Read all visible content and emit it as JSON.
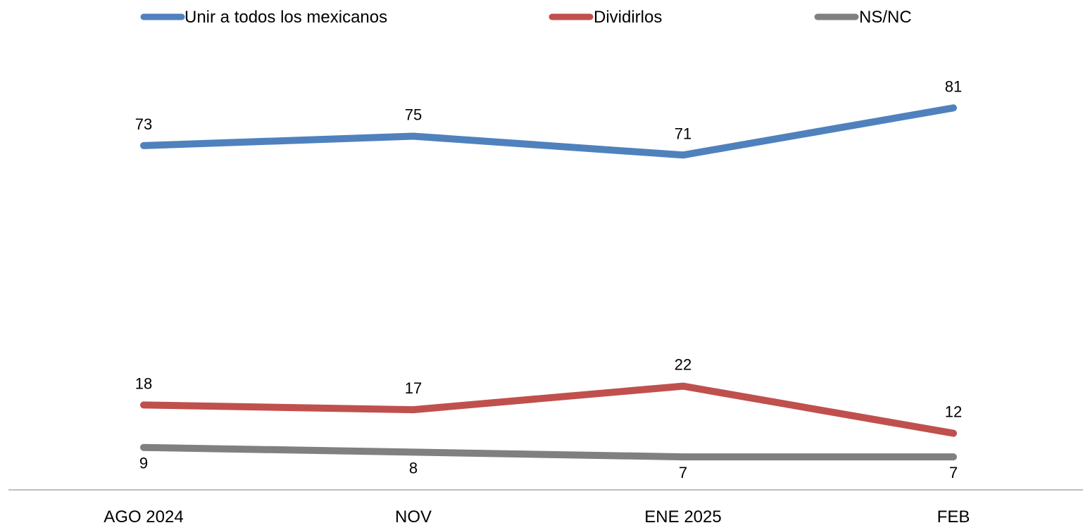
{
  "chart_data": {
    "type": "line",
    "categories": [
      "AGO 2024",
      "NOV",
      "ENE 2025",
      "FEB"
    ],
    "series": [
      {
        "name": "Unir a todos los mexicanos",
        "color": "#4F81BD",
        "values": [
          73,
          75,
          71,
          81
        ]
      },
      {
        "name": "Dividirlos",
        "color": "#C0504D",
        "values": [
          18,
          17,
          22,
          12
        ]
      },
      {
        "name": "NS/NC",
        "color": "#808080",
        "values": [
          9,
          8,
          7,
          7
        ]
      }
    ],
    "ylim": [
      0,
      90
    ],
    "grid": false,
    "legend_position": "top",
    "data_labels": true,
    "axis_color": "#BFBFBF"
  }
}
